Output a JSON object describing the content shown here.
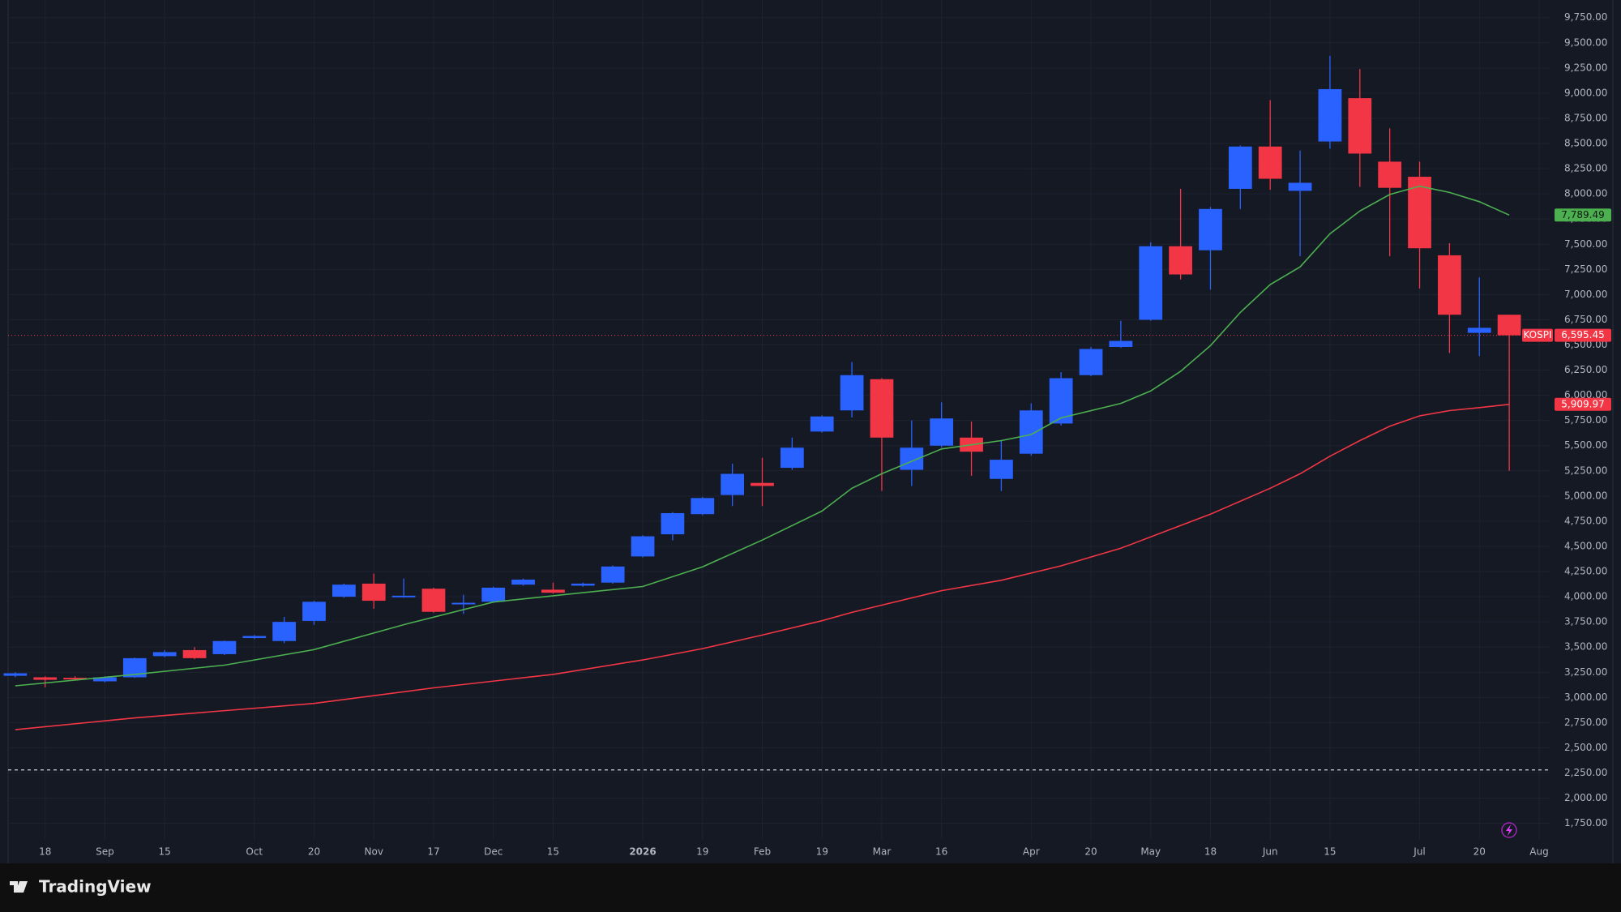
{
  "chart_data": {
    "type": "candlestick",
    "footer": "TradingView",
    "xlim": [
      -0.24,
      51.38
    ],
    "ylim": [
      1586,
      9925
    ],
    "grid": true,
    "xticks": [
      {
        "value": 1,
        "label": "18"
      },
      {
        "value": 3,
        "label": "Sep"
      },
      {
        "value": 5,
        "label": "15"
      },
      {
        "value": 8,
        "label": "Oct"
      },
      {
        "value": 10,
        "label": "20"
      },
      {
        "value": 12,
        "label": "Nov"
      },
      {
        "value": 14,
        "label": "17"
      },
      {
        "value": 16,
        "label": "Dec"
      },
      {
        "value": 18,
        "label": "15"
      },
      {
        "value": 21,
        "label": "2026"
      },
      {
        "value": 23,
        "label": "19"
      },
      {
        "value": 25,
        "label": "Feb"
      },
      {
        "value": 27,
        "label": "19"
      },
      {
        "value": 29,
        "label": "Mar"
      },
      {
        "value": 31,
        "label": "16"
      },
      {
        "value": 34,
        "label": "Apr"
      },
      {
        "value": 36,
        "label": "20"
      },
      {
        "value": 38,
        "label": "May"
      },
      {
        "value": 40,
        "label": "18"
      },
      {
        "value": 42,
        "label": "Jun"
      },
      {
        "value": 44,
        "label": "15"
      },
      {
        "value": 47,
        "label": "Jul"
      },
      {
        "value": 49,
        "label": "20"
      },
      {
        "value": 51,
        "label": "Aug"
      }
    ],
    "yticks": [
      {
        "value": 1750,
        "label": "1,750.00"
      },
      {
        "value": 2000,
        "label": "2,000.00"
      },
      {
        "value": 2250,
        "label": "2,250.00"
      },
      {
        "value": 2500,
        "label": "2,500.00"
      },
      {
        "value": 2750,
        "label": "2,750.00"
      },
      {
        "value": 3000,
        "label": "3,000.00"
      },
      {
        "value": 3250,
        "label": "3,250.00"
      },
      {
        "value": 3500,
        "label": "3,500.00"
      },
      {
        "value": 3750,
        "label": "3,750.00"
      },
      {
        "value": 4000,
        "label": "4,000.00"
      },
      {
        "value": 4250,
        "label": "4,250.00"
      },
      {
        "value": 4500,
        "label": "4,500.00"
      },
      {
        "value": 4750,
        "label": "4,750.00"
      },
      {
        "value": 5000,
        "label": "5,000.00"
      },
      {
        "value": 5250,
        "label": "5,250.00"
      },
      {
        "value": 5500,
        "label": "5,500.00"
      },
      {
        "value": 5750,
        "label": "5,750.00"
      },
      {
        "value": 6000,
        "label": "6,000.00"
      },
      {
        "value": 6250,
        "label": "6,250.00"
      },
      {
        "value": 6500,
        "label": "6,500.00"
      },
      {
        "value": 6750,
        "label": "6,750.00"
      },
      {
        "value": 7000,
        "label": "7,000.00"
      },
      {
        "value": 7250,
        "label": "7,250.00"
      },
      {
        "value": 7500,
        "label": "7,500.00"
      },
      {
        "value": 7750,
        "label": "7,750.00"
      },
      {
        "value": 8000,
        "label": "8,000.00"
      },
      {
        "value": 8250,
        "label": "8,250.00"
      },
      {
        "value": 8500,
        "label": "8,500.00"
      },
      {
        "value": 8750,
        "label": "8,750.00"
      },
      {
        "value": 9000,
        "label": "9,000.00"
      },
      {
        "value": 9250,
        "label": "9,250.00"
      },
      {
        "value": 9500,
        "label": "9,500.00"
      },
      {
        "value": 9750,
        "label": "9,750.00"
      }
    ],
    "candles": {
      "name": "KOSPI",
      "close_label": "6,595.45",
      "up_color": "#2962ff",
      "down_color": "#f23645",
      "x": [
        0,
        1,
        2,
        3,
        4,
        5,
        6,
        7,
        8,
        9,
        10,
        11,
        12,
        13,
        14,
        15,
        16,
        17,
        18,
        19,
        20,
        21,
        22,
        23,
        24,
        25,
        26,
        27,
        28,
        29,
        30,
        31,
        32,
        33,
        34,
        35,
        36,
        37,
        38,
        39,
        40,
        41,
        42,
        43,
        44,
        45,
        46,
        47,
        48,
        49,
        50
      ],
      "open": [
        3215,
        3200,
        3195,
        3160,
        3200,
        3410,
        3470,
        3430,
        3590,
        3560,
        3760,
        4000,
        4130,
        3995,
        4080,
        3925,
        3950,
        4120,
        4070,
        4110,
        4140,
        4400,
        4620,
        4820,
        5010,
        5130,
        5280,
        5640,
        5850,
        6160,
        5260,
        5500,
        5580,
        5170,
        5420,
        5720,
        6200,
        6480,
        6750,
        7480,
        7440,
        8050,
        8470,
        8030,
        8520,
        8950,
        8320,
        8170,
        7390,
        6620,
        6800
      ],
      "high": [
        3250,
        3210,
        3210,
        3210,
        3395,
        3470,
        3500,
        3565,
        3620,
        3800,
        3960,
        4130,
        4230,
        4180,
        4090,
        4020,
        4100,
        4180,
        4140,
        4140,
        4310,
        4610,
        4840,
        4990,
        5320,
        5380,
        5580,
        5800,
        6330,
        6170,
        5750,
        5930,
        5740,
        5550,
        5920,
        6230,
        6480,
        6740,
        7520,
        8050,
        7870,
        8480,
        8930,
        8430,
        9370,
        9240,
        8650,
        8320,
        7510,
        7170,
        6800
      ],
      "low": [
        3200,
        3100,
        3175,
        3150,
        3195,
        3400,
        3380,
        3420,
        3580,
        3540,
        3720,
        3990,
        3880,
        3990,
        3840,
        3830,
        3940,
        4110,
        4030,
        4100,
        4130,
        4390,
        4560,
        4810,
        4900,
        4900,
        5260,
        5630,
        5780,
        5050,
        5100,
        5480,
        5200,
        5050,
        5400,
        5700,
        6190,
        6470,
        6740,
        7150,
        7050,
        7850,
        8040,
        7380,
        8450,
        8070,
        7380,
        7060,
        6420,
        6390,
        5250
      ],
      "close": [
        3240,
        3175,
        3185,
        3200,
        3390,
        3450,
        3390,
        3560,
        3610,
        3750,
        3950,
        4120,
        3960,
        4010,
        3850,
        3940,
        4090,
        4170,
        4040,
        4130,
        4300,
        4600,
        4830,
        4980,
        5220,
        5100,
        5480,
        5790,
        6200,
        5580,
        5480,
        5770,
        5440,
        5360,
        5850,
        6170,
        6460,
        6540,
        7480,
        7200,
        7850,
        8470,
        8150,
        8110,
        9040,
        8400,
        8060,
        7460,
        6800,
        6670,
        6595.45
      ]
    },
    "series": [
      {
        "color": "#4caf50",
        "end_label": "7,789.49",
        "x": [
          0,
          4,
          7,
          10,
          13,
          16,
          19,
          21,
          23,
          25,
          27,
          28,
          29,
          31,
          33,
          34,
          35,
          37,
          38,
          39,
          40,
          41,
          42,
          43,
          44,
          45,
          46,
          47,
          48,
          49,
          50
        ],
        "values": [
          3115,
          3229,
          3321,
          3475,
          3722,
          3947,
          4040,
          4101,
          4297,
          4563,
          4851,
          5077,
          5221,
          5467,
          5550,
          5611,
          5776,
          5920,
          6043,
          6238,
          6494,
          6823,
          7100,
          7275,
          7604,
          7830,
          7994,
          8076,
          8014,
          7922,
          7789.49
        ]
      },
      {
        "color": "#f23645",
        "end_label": "5,909.97",
        "x": [
          0,
          4,
          10,
          14,
          18,
          21,
          23,
          25,
          27,
          28,
          31,
          33,
          35,
          37,
          39,
          40,
          42,
          43,
          44,
          45,
          46,
          47,
          48,
          49,
          50
        ],
        "values": [
          2680,
          2797,
          2941,
          3095,
          3229,
          3372,
          3485,
          3619,
          3762,
          3845,
          4060,
          4163,
          4307,
          4481,
          4707,
          4820,
          5077,
          5221,
          5395,
          5550,
          5693,
          5796,
          5848,
          5878,
          5909.97
        ]
      }
    ],
    "hline": {
      "value": 2280,
      "color": "#d1d4dc"
    }
  }
}
